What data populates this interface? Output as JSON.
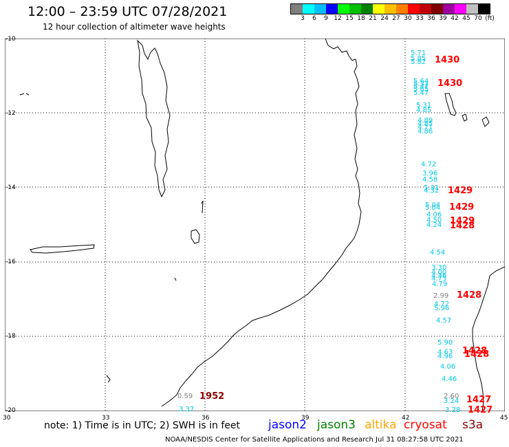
{
  "header": {
    "title": "12:00 – 23:59 UTC 07/28/2021",
    "subtitle": "12 hour collection of altimeter wave heights"
  },
  "scale": {
    "colors": [
      "#808080",
      "#00ffff",
      "#00bfff",
      "#0000ff",
      "#00ff00",
      "#00c000",
      "#008000",
      "#ffff00",
      "#ffc000",
      "#ff8000",
      "#ff0000",
      "#c00000",
      "#800000",
      "#a000a0",
      "#ff00ff",
      "#c0c0c0",
      "#000000"
    ],
    "labels": [
      "3",
      "6",
      "9",
      "12",
      "15",
      "18",
      "21",
      "24",
      "27",
      "30",
      "33",
      "36",
      "39",
      "42",
      "45",
      "70",
      "(ft)"
    ]
  },
  "axes": {
    "lat_labels": [
      "-10",
      "-12",
      "-14",
      "-16",
      "-18",
      "-20"
    ],
    "lon_labels": [
      "30",
      "33",
      "36",
      "39",
      "42",
      "45"
    ]
  },
  "observations": [
    {
      "text": "5.71",
      "color": "#00c8e6"
    },
    {
      "text": "5.85",
      "color": "#00c8e6"
    },
    {
      "text": "5.82",
      "color": "#00c8e6"
    },
    {
      "text": "5.64",
      "color": "#00c8e6"
    },
    {
      "text": "5.33",
      "color": "#00c8e6"
    },
    {
      "text": "5.41",
      "color": "#00c8e6"
    },
    {
      "text": "5.65",
      "color": "#00c8e6"
    },
    {
      "text": "5.47",
      "color": "#00c8e6"
    },
    {
      "text": "5.31",
      "color": "#00c8e6"
    },
    {
      "text": "4.85",
      "color": "#00c8e6"
    },
    {
      "text": "4.89",
      "color": "#00c8e6"
    },
    {
      "text": "4.85",
      "color": "#00c8e6"
    },
    {
      "text": "4.71",
      "color": "#00c8e6"
    },
    {
      "text": "4.86",
      "color": "#00c8e6"
    },
    {
      "text": "4.72",
      "color": "#00c8e6"
    },
    {
      "text": "3.96",
      "color": "#00c8e6"
    },
    {
      "text": "4.58",
      "color": "#00c8e6"
    },
    {
      "text": "5.31",
      "color": "#00c8e6"
    },
    {
      "text": "4.32",
      "color": "#00c8e6"
    },
    {
      "text": "5.04",
      "color": "#00c8e6"
    },
    {
      "text": "5.04",
      "color": "#00c8e6"
    },
    {
      "text": "4.06",
      "color": "#00c8e6"
    },
    {
      "text": "4.50",
      "color": "#00c8e6"
    },
    {
      "text": "4.24",
      "color": "#00c8e6"
    },
    {
      "text": "4.54",
      "color": "#00c8e6"
    },
    {
      "text": "3.30",
      "color": "#00c8e6"
    },
    {
      "text": "4.00",
      "color": "#00c8e6"
    },
    {
      "text": "4.36",
      "color": "#00c8e6"
    },
    {
      "text": "4.73",
      "color": "#00c8e6"
    },
    {
      "text": "4.79",
      "color": "#00c8e6"
    },
    {
      "text": "2.99",
      "color": "#808080"
    },
    {
      "text": "4.72",
      "color": "#00c8e6"
    },
    {
      "text": "5.96",
      "color": "#00c8e6"
    },
    {
      "text": "4.57",
      "color": "#00c8e6"
    },
    {
      "text": "5.90",
      "color": "#00c8e6"
    },
    {
      "text": "4.63",
      "color": "#00c8e6"
    },
    {
      "text": "4.96",
      "color": "#00c8e6"
    },
    {
      "text": "4.06",
      "color": "#00c8e6"
    },
    {
      "text": "4.46",
      "color": "#00c8e6"
    },
    {
      "text": "2.60",
      "color": "#808080"
    },
    {
      "text": "3.24",
      "color": "#00c8e6"
    },
    {
      "text": "3.28",
      "color": "#00c8e6"
    },
    {
      "text": "0.59",
      "color": "#808080"
    },
    {
      "text": "3.37",
      "color": "#00c8e6"
    }
  ],
  "passes": [
    {
      "text": "1430",
      "color": "#ff0000"
    },
    {
      "text": "1430",
      "color": "#ff0000"
    },
    {
      "text": "1429",
      "color": "#ff0000"
    },
    {
      "text": "1429",
      "color": "#ff0000"
    },
    {
      "text": "1429",
      "color": "#ff0000"
    },
    {
      "text": "1428",
      "color": "#ff0000"
    },
    {
      "text": "1428",
      "color": "#ff0000"
    },
    {
      "text": "1428",
      "color": "#ff0000"
    },
    {
      "text": "1428",
      "color": "#ff0000"
    },
    {
      "text": "1427",
      "color": "#ff0000"
    },
    {
      "text": "1427",
      "color": "#ff0000"
    },
    {
      "text": "1952",
      "color": "#8b0000"
    }
  ],
  "footer": {
    "note": "note: 1) Time is in UTC; 2) SWH is in feet",
    "satellites": [
      {
        "name": "jason2",
        "color": "#0000ff"
      },
      {
        "name": "jason3",
        "color": "#008000"
      },
      {
        "name": "altika",
        "color": "#ffa500"
      },
      {
        "name": "cryosat",
        "color": "#ff0000"
      },
      {
        "name": "s3a",
        "color": "#8b0000"
      }
    ],
    "credit": "NOAA/NESDIS Center for Satellite Applications and Research     Jul 31 08:27:58 UTC 2021"
  }
}
